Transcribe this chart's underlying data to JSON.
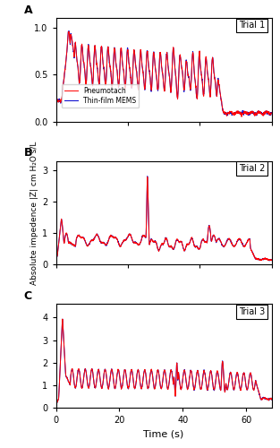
{
  "fig_width": 3.13,
  "fig_height": 5.0,
  "dpi": 100,
  "red_color": "#FF0000",
  "blue_color": "#0000CC",
  "background": "#ffffff",
  "ylabel": "Absolute impedence |Z| cm H₂O s/L",
  "xlabel": "Time (s)",
  "panel_labels": [
    "A",
    "B",
    "C"
  ],
  "trial_labels": [
    "Trial 1",
    "Trial 2",
    "Trial 3"
  ],
  "ylim_A": [
    0,
    1.1
  ],
  "ylim_B": [
    0,
    3.3
  ],
  "ylim_C": [
    0,
    4.6
  ],
  "xlim_A": [
    0,
    60
  ],
  "xlim_B": [
    0,
    60
  ],
  "xlim_C": [
    0,
    68
  ],
  "yticks_A": [
    0,
    0.5,
    1
  ],
  "yticks_B": [
    0,
    1,
    2,
    3
  ],
  "yticks_C": [
    0,
    1,
    2,
    3,
    4
  ],
  "xticks_AB": [
    0,
    20,
    40,
    60
  ],
  "xticks_C": [
    0,
    20,
    40,
    60
  ],
  "label_pneumotach": "Pneumotach",
  "label_thinfilm": "Thin-film MEMS"
}
